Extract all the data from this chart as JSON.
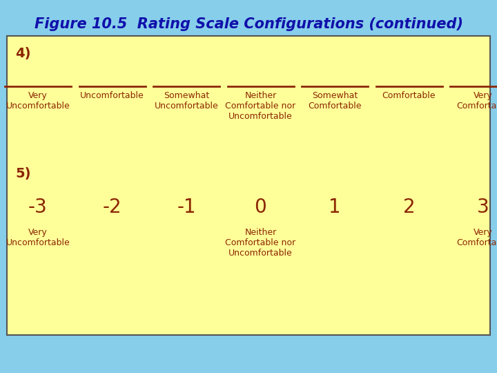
{
  "title": "Figure 10.5  Rating Scale Configurations (continued)",
  "title_color": "#1010AA",
  "title_fontsize": 15,
  "title_style": "italic",
  "title_weight": "bold",
  "bg_color": "#87CEEB",
  "box_color": "#FFFF99",
  "box_edge_color": "#555555",
  "label_color": "#8B2500",
  "section4_label": "4)",
  "section5_label": "5)",
  "scale4_labels": [
    "Very\nUncomfortable",
    "Uncomfortable",
    "Somewhat\nUncomfortable",
    "Neither\nComfortable nor\nUncomfortable",
    "Somewhat\nComfortable",
    "Comfortable",
    "Very\nComfortable"
  ],
  "scale5_numbers": [
    "-3",
    "-2",
    "-1",
    "0",
    "1",
    "2",
    "3"
  ],
  "scale5_sublabels": {
    "0": "Very\nUncomfortable",
    "3": "Neither\nComfortable nor\nUncomfortable",
    "6": "Very\nComfortable"
  },
  "line_color": "#8B2500",
  "number_fontsize": 20,
  "sublabel_fontsize": 9,
  "scale4_label_fontsize": 9,
  "section_label_fontsize": 14
}
